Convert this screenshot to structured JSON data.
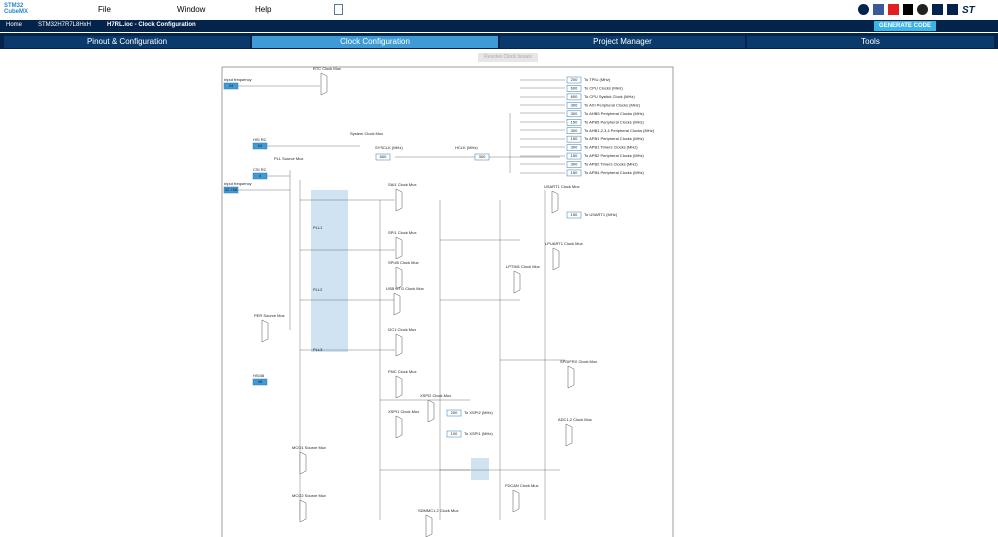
{
  "menu": {
    "logo": "STM32 CubeMX",
    "items": [
      "File",
      "Window",
      "Help"
    ],
    "generate": "GENERATE CODE"
  },
  "breadcrumb": [
    "Home",
    "STM32H7R7L8HxH",
    "H7RL.ioc - Clock Configuration"
  ],
  "tabs": [
    "Pinout & Configuration",
    "Clock Configuration",
    "Project Manager",
    "Tools"
  ],
  "toolbar": {
    "resolve": "Resolve Clock Issues"
  },
  "inputs": [
    {
      "label": "Input frequency",
      "value": "24"
    },
    {
      "label": "HSI RC",
      "value": "64"
    },
    {
      "label": "CSI RC",
      "value": "4"
    },
    {
      "label": "Input frequency",
      "value": "32.768"
    },
    {
      "label": "HSI48",
      "value": "48"
    }
  ],
  "system": {
    "sysclk_label": "SYSCLK (MHz)",
    "sysclk": "600",
    "hclk_label": "HCLK (MHz)",
    "hclk": "300",
    "mux": "System Clock Mux",
    "pll_mux": "PLL Source Mux",
    "plls": [
      "PLL1",
      "PLL2",
      "PLL3"
    ]
  },
  "outputs": [
    {
      "label": "To TPIU (MHz)",
      "value": "200"
    },
    {
      "label": "To CPU Clocks (MHz)",
      "value": "600"
    },
    {
      "label": "To CPU Systick Clock (MHz)",
      "value": "600"
    },
    {
      "label": "To AXI Peripheral Clocks (MHz)",
      "value": "300"
    },
    {
      "label": "To AHB5 Peripheral Clocks (MHz)",
      "value": "300"
    },
    {
      "label": "To APB5 Peripheral Clocks (MHz)",
      "value": "150"
    },
    {
      "label": "To AHB1,2,3,4 Peripheral Clocks (MHz)",
      "value": "300"
    },
    {
      "label": "To APB1 Peripheral Clocks (MHz)",
      "value": "150"
    },
    {
      "label": "To APB1 Timers Clocks (MHz)",
      "value": "300"
    },
    {
      "label": "To APB2 Peripheral Clocks (MHz)",
      "value": "150"
    },
    {
      "label": "To APB2 Timers Clocks (MHz)",
      "value": "300"
    },
    {
      "label": "To APB4 Peripheral Clocks (MHz)",
      "value": "150"
    }
  ],
  "peripherals": [
    {
      "label": "To USART1 (MHz)",
      "value": "150"
    },
    {
      "label": "To XSPI2 (MHz)",
      "value": "200"
    },
    {
      "label": "To XSPI1 (MHz)",
      "value": "100"
    }
  ],
  "muxes": [
    "SAI1 Clock Mux",
    "SPI1 Clock Mux",
    "SPI45 Clock Mux",
    "USB OTG Clock Mux",
    "I2C1 Clock Mux",
    "FMC Clock Mux",
    "XSPI1 Clock Mux",
    "XSPI2 Clock Mux",
    "PER Source Mux",
    "MCO1 Source Mux",
    "MCO2 Source Mux",
    "USART1 Clock Mux",
    "LPUART1 Clock Mux",
    "LPTIM1 Clock Mux",
    "SPDIFRX Clock Mux",
    "ADC1,2 Clock Mux",
    "FDCAN Clock Mux",
    "SDMMC1,2 Clock Mux",
    "RTC Clock Mux"
  ]
}
